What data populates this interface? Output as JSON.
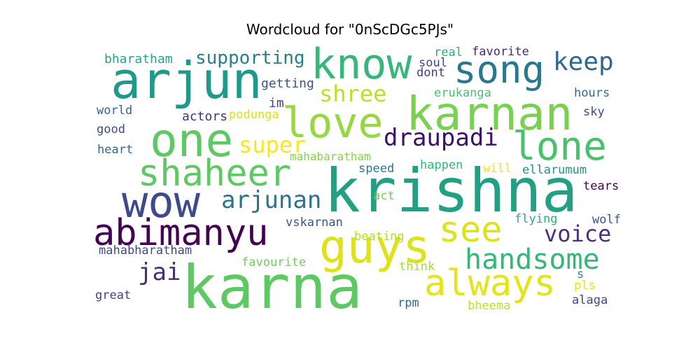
{
  "chart_data": {
    "type": "wordcloud",
    "title": "Wordcloud for \"0nScDGc5PJs\"",
    "words": [
      {
        "text": "krishna",
        "color": "#23a083"
      },
      {
        "text": "karna",
        "color": "#5ec962"
      },
      {
        "text": "arjun",
        "color": "#1f9a8a"
      },
      {
        "text": "karnan",
        "color": "#7ad151"
      },
      {
        "text": "one",
        "color": "#5ec962"
      },
      {
        "text": "guys",
        "color": "#dde318"
      },
      {
        "text": "know",
        "color": "#35b779"
      },
      {
        "text": "love",
        "color": "#95d840"
      },
      {
        "text": "wow",
        "color": "#3e4a89"
      },
      {
        "text": "song",
        "color": "#2a788e"
      },
      {
        "text": "shaheer",
        "color": "#5ec962"
      },
      {
        "text": "lone",
        "color": "#4ac16d"
      },
      {
        "text": "abimanyu",
        "color": "#440154"
      },
      {
        "text": "always",
        "color": "#e5e419"
      },
      {
        "text": "see",
        "color": "#dde318"
      },
      {
        "text": "handsome",
        "color": "#35b779"
      },
      {
        "text": "keep",
        "color": "#31688e"
      },
      {
        "text": "draupadi",
        "color": "#3b0f70"
      },
      {
        "text": "arjunan",
        "color": "#2c728e"
      },
      {
        "text": "voice",
        "color": "#46327e"
      },
      {
        "text": "shree",
        "color": "#bddf26"
      },
      {
        "text": "super",
        "color": "#f8e621"
      },
      {
        "text": "jai",
        "color": "#472d7b"
      },
      {
        "text": "supporting",
        "color": "#277f8e"
      },
      {
        "text": "bharatham",
        "color": "#22a884"
      },
      {
        "text": "getting",
        "color": "#3b528b"
      },
      {
        "text": "im",
        "color": "#414487"
      },
      {
        "text": "world",
        "color": "#33638d"
      },
      {
        "text": "actors",
        "color": "#46307e"
      },
      {
        "text": "podunga",
        "color": "#d8e219"
      },
      {
        "text": "good",
        "color": "#3e4989"
      },
      {
        "text": "heart",
        "color": "#31688e"
      },
      {
        "text": "real",
        "color": "#2ab07f"
      },
      {
        "text": "favorite",
        "color": "#482878"
      },
      {
        "text": "soul",
        "color": "#404688"
      },
      {
        "text": "dont",
        "color": "#443983"
      },
      {
        "text": "erukanga",
        "color": "#4ac16d"
      },
      {
        "text": "hours",
        "color": "#2e6e8e"
      },
      {
        "text": "sky",
        "color": "#3f4788"
      },
      {
        "text": "mahabaratham",
        "color": "#84d44b"
      },
      {
        "text": "speed",
        "color": "#2a778e"
      },
      {
        "text": "happen",
        "color": "#35b779"
      },
      {
        "text": "will",
        "color": "#f1e51d"
      },
      {
        "text": "ellarumum",
        "color": "#20928c"
      },
      {
        "text": "tears",
        "color": "#440154"
      },
      {
        "text": "act",
        "color": "#70cf57"
      },
      {
        "text": "vskarnan",
        "color": "#39568c"
      },
      {
        "text": "beating",
        "color": "#b5de2b"
      },
      {
        "text": "flying",
        "color": "#29af7f"
      },
      {
        "text": "wolf",
        "color": "#3b528b"
      },
      {
        "text": "mahabharatham",
        "color": "#3e4a89"
      },
      {
        "text": "favourite",
        "color": "#6ece58"
      },
      {
        "text": "think",
        "color": "#a8db34"
      },
      {
        "text": "s",
        "color": "#25848e"
      },
      {
        "text": "pls",
        "color": "#e2e418"
      },
      {
        "text": "great",
        "color": "#424086"
      },
      {
        "text": "rpm",
        "color": "#31688e"
      },
      {
        "text": "bheema",
        "color": "#bddf26"
      },
      {
        "text": "alaga",
        "color": "#3e4989"
      }
    ]
  }
}
